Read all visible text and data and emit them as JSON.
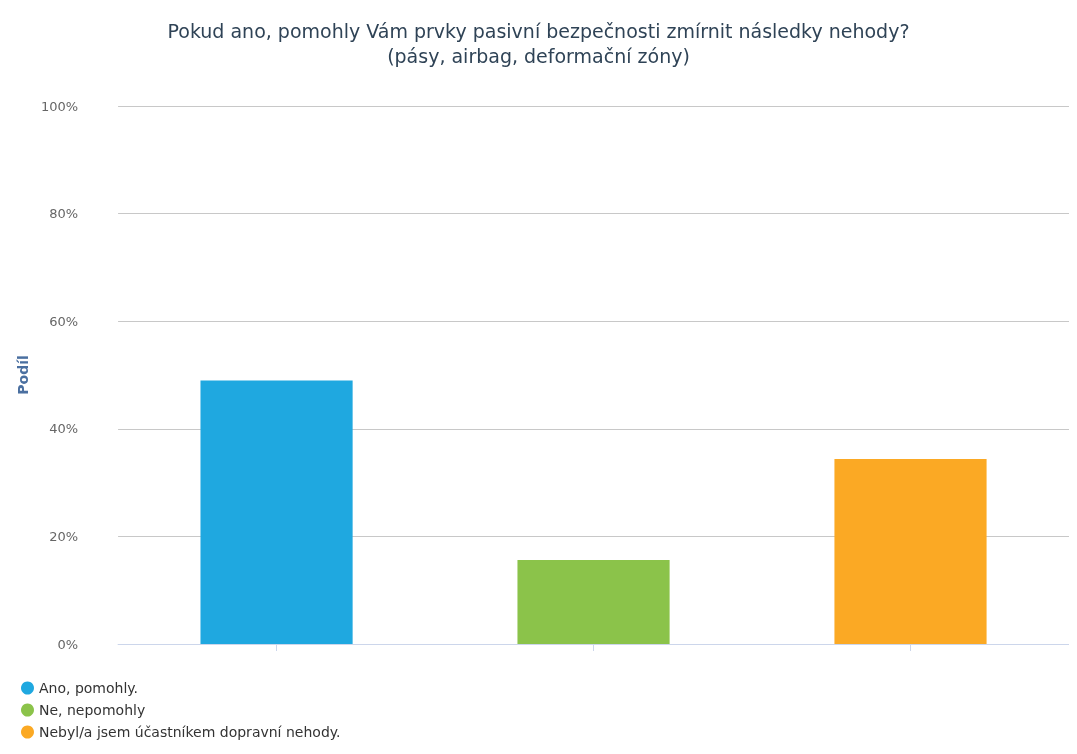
{
  "chart_data": {
    "type": "bar",
    "title": "Pokud ano, pomohly Vám prvky pasivní bezpečnosti zmírnit následky nehody?",
    "subtitle": "(pásy, airbag, deformační zóny)",
    "ylabel": "Podíl",
    "categories": [
      null,
      null,
      null
    ],
    "series": [
      {
        "name": "Ano, pomohly.",
        "color": "#1fa8e0",
        "values": [
          49,
          null,
          null
        ]
      },
      {
        "name": "Ne, nepomohly",
        "color": "#8bc34a",
        "values": [
          null,
          15.6,
          null
        ]
      },
      {
        "name": "Nebyl/a jsem účastníkem dopravní nehody.",
        "color": "#fba924",
        "values": [
          null,
          null,
          34.4
        ]
      }
    ],
    "ylim": [
      0,
      100
    ],
    "yticks": [
      {
        "value": 0,
        "label": "0%"
      },
      {
        "value": 20,
        "label": "20%"
      },
      {
        "value": 40,
        "label": "40%"
      },
      {
        "value": 60,
        "label": "60%"
      },
      {
        "value": 80,
        "label": "80%"
      },
      {
        "value": 100,
        "label": "100%"
      }
    ],
    "grid": "y",
    "legend": "bottom left"
  }
}
